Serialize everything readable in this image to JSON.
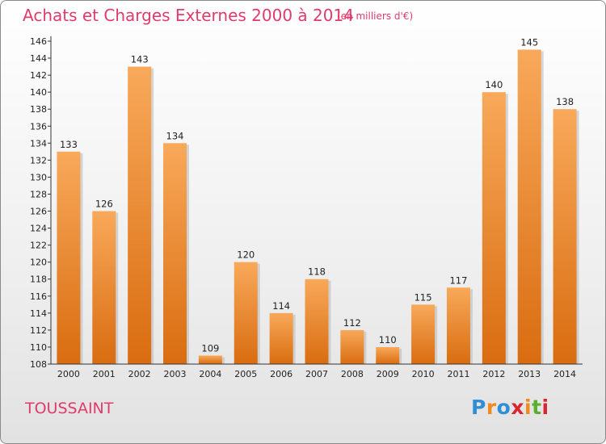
{
  "title": "Achats et Charges Externes 2000 à 2014",
  "subtitle": "(en milliers d'€)",
  "commune": "TOUSSAINT",
  "logo": {
    "text": "Proxiti",
    "letter_colors": [
      "#2e8fd6",
      "#f08a1a",
      "#2e8fd6",
      "#d9262f",
      "#f08a1a",
      "#58b031",
      "#d9262f"
    ]
  },
  "chart_data": {
    "type": "bar",
    "title": "Achats et Charges Externes 2000 à 2014",
    "subtitle": "(en milliers d'€)",
    "categories": [
      "2000",
      "2001",
      "2002",
      "2003",
      "2004",
      "2005",
      "2006",
      "2007",
      "2008",
      "2009",
      "2010",
      "2011",
      "2012",
      "2013",
      "2014"
    ],
    "values": [
      133,
      126,
      143,
      134,
      109,
      120,
      114,
      118,
      112,
      110,
      115,
      117,
      140,
      145,
      138
    ],
    "ylim": [
      108,
      146
    ],
    "yticks": [
      108,
      110,
      112,
      114,
      116,
      118,
      120,
      122,
      124,
      126,
      128,
      130,
      132,
      134,
      136,
      138,
      140,
      142,
      144,
      146
    ],
    "bar_color_top": "#f8a95a",
    "bar_color_bottom": "#d96c10",
    "grid": false,
    "data_labels": true
  }
}
